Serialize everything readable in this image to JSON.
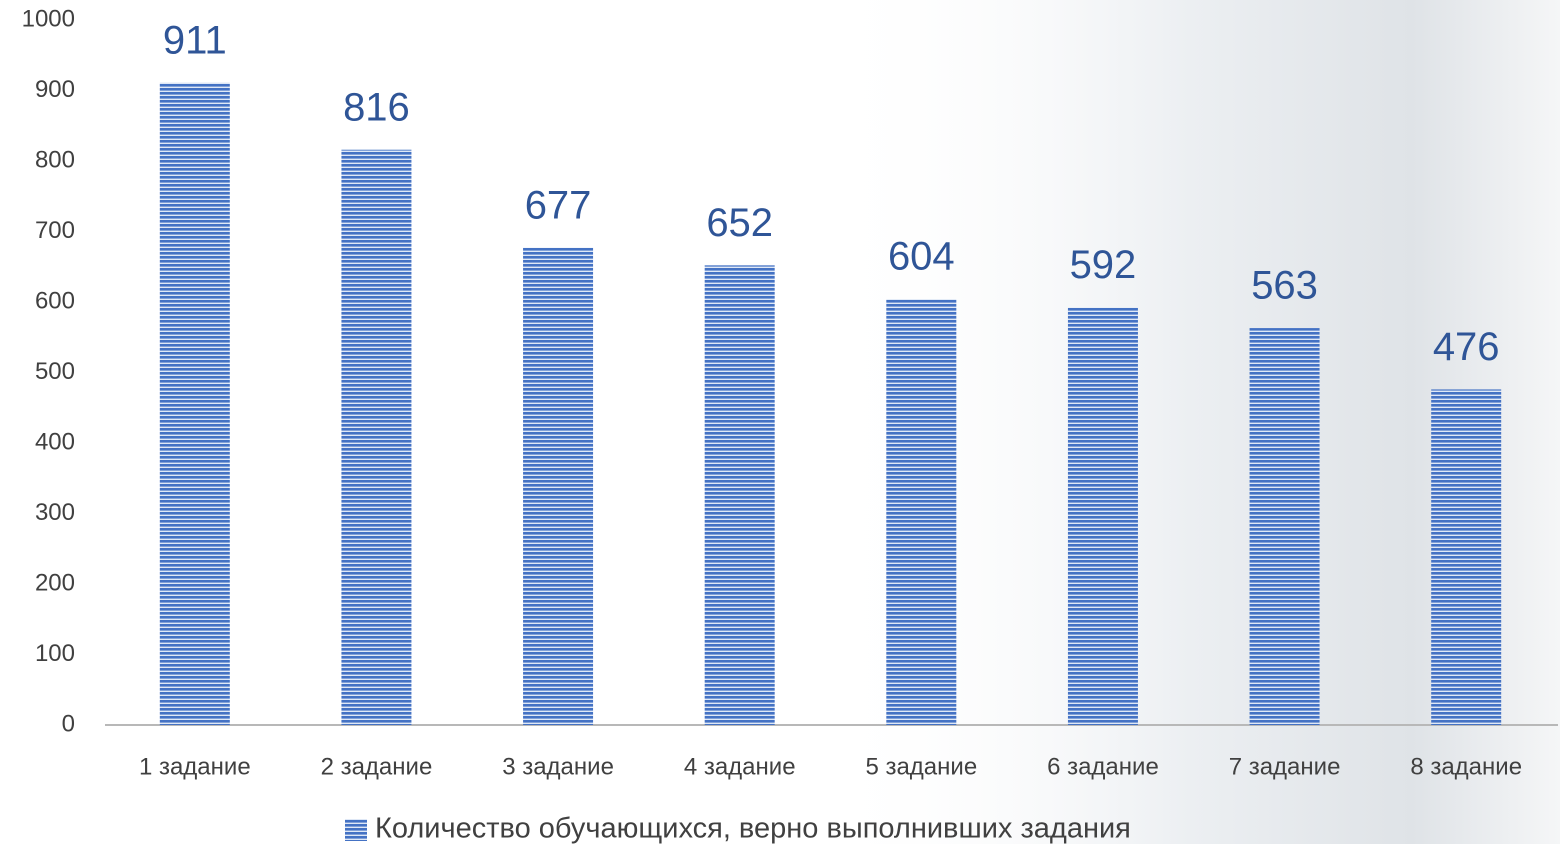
{
  "chart_data": {
    "type": "bar",
    "categories": [
      "1 задание",
      "2 задание",
      "3 задание",
      "4 задание",
      "5 задание",
      "6 задание",
      "7 задание",
      "8 задание"
    ],
    "series": [
      {
        "name": "Количество обучающихся, верно выполнивших задания",
        "color": "#4472c4",
        "values": [
          911,
          816,
          677,
          652,
          604,
          592,
          563,
          476
        ]
      }
    ],
    "ylim": [
      0,
      1000
    ],
    "yticks": [
      0,
      100,
      200,
      300,
      400,
      500,
      600,
      700,
      800,
      900,
      1000
    ],
    "grid": false,
    "legend": "bottom"
  }
}
